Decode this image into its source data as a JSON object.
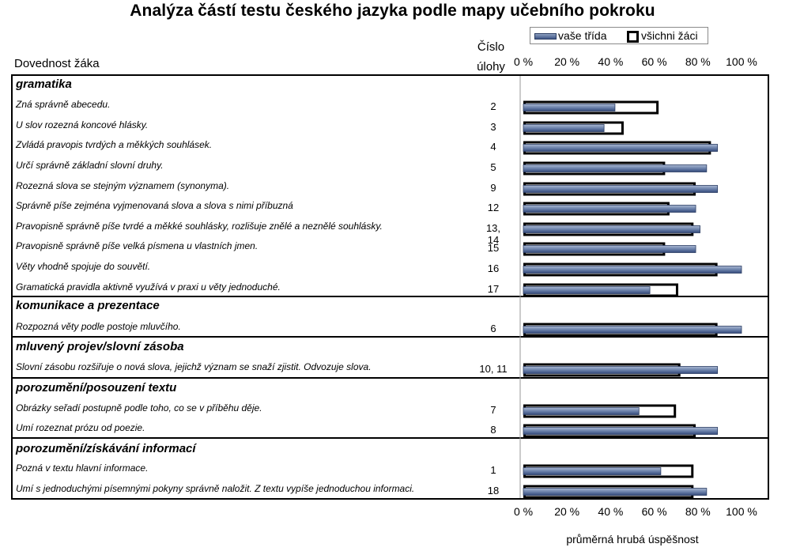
{
  "chart_data": {
    "type": "bar",
    "orientation": "horizontal",
    "title": "Analýza částí testu českého jazyka podle mapy učebního pokroku",
    "column_headers": {
      "skill": "Dovednost žáka",
      "task_number": "Číslo úlohy"
    },
    "xlabel": "průměrná hrubá úspěšnost",
    "xlim": [
      0,
      100
    ],
    "ticks": [
      "0 %",
      "20 %",
      "40 %",
      "60 %",
      "80 %",
      "100 %"
    ],
    "legend": [
      "vaše třída",
      "všichni žáci"
    ],
    "groups": [
      {
        "name": "gramatika",
        "rows": [
          {
            "label": "Zná správně abecedu.",
            "task": "2",
            "class": 42,
            "all": 62
          },
          {
            "label": "U slov rozezná koncové hlásky.",
            "task": "3",
            "class": 37,
            "all": 46
          },
          {
            "label": "Zvládá pravopis tvrdých a měkkých souhlásek.",
            "task": "4",
            "class": 89,
            "all": 86
          },
          {
            "label": "Určí správně základní slovní druhy.",
            "task": "5",
            "class": 84,
            "all": 65
          },
          {
            "label": "Rozezná slova se stejným významem (synonyma).",
            "task": "9",
            "class": 89,
            "all": 79
          },
          {
            "label": "Správně píše zejména vyjmenovaná slova a slova s nimi příbuzná",
            "task": "12",
            "class": 79,
            "all": 67
          },
          {
            "label": "Pravopisně správně píše tvrdé a měkké souhlásky, rozlišuje znělé a neznělé souhlásky.",
            "task": "13, 14",
            "class": 81,
            "all": 78
          },
          {
            "label": "Pravopisně správně píše velká písmena u vlastních jmen.",
            "task": "15",
            "class": 79,
            "all": 65
          },
          {
            "label": "Věty vhodně spojuje do souvětí.",
            "task": "16",
            "class": 100,
            "all": 89
          },
          {
            "label": "Gramatická pravidla aktivně využívá v praxi u věty jednoduché.",
            "task": "17",
            "class": 58,
            "all": 71
          }
        ]
      },
      {
        "name": "komunikace a prezentace",
        "rows": [
          {
            "label": "Rozpozná věty podle postoje mluvčího.",
            "task": "6",
            "class": 100,
            "all": 89
          }
        ]
      },
      {
        "name": "mluvený projev/slovní zásoba",
        "rows": [
          {
            "label": "Slovní zásobu rozšiřuje o nová slova, jejichž význam se snaží zjistit. Odvozuje slova.",
            "task": "10, 11",
            "class": 89,
            "all": 72
          }
        ]
      },
      {
        "name": "porozumění/posouzení textu",
        "rows": [
          {
            "label": "Obrázky seřadí postupně podle toho, co se v příběhu děje.",
            "task": "7",
            "class": 53,
            "all": 70
          },
          {
            "label": "Umí rozeznat prózu od poezie.",
            "task": "8",
            "class": 89,
            "all": 79
          }
        ]
      },
      {
        "name": "porozumění/získávání informací",
        "rows": [
          {
            "label": "Pozná v textu hlavní informace.",
            "task": "1",
            "class": 63,
            "all": 78
          },
          {
            "label": "Umí s jednoduchými písemnými pokyny správně naložit. Z textu vypíše jednoduchou informaci.",
            "task": "18",
            "class": 84,
            "all": 78
          }
        ]
      }
    ]
  }
}
